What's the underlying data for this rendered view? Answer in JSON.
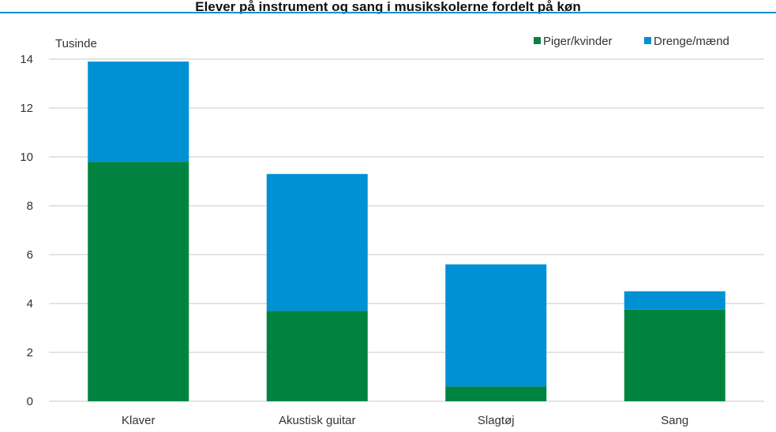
{
  "title": "Elever på instrument og sang i musikskolerne fordelt på køn",
  "chart_data": {
    "type": "bar",
    "stacked": true,
    "unit_label": "Tusinde",
    "categories": [
      "Klaver",
      "Akustisk guitar",
      "Slagtøj",
      "Sang"
    ],
    "series": [
      {
        "name": "Piger/kvinder",
        "color": "#00833e",
        "values": [
          9.8,
          3.7,
          0.6,
          3.75
        ]
      },
      {
        "name": "Drenge/mænd",
        "color": "#0090d4",
        "values": [
          4.1,
          5.6,
          5.0,
          0.75
        ]
      }
    ],
    "ylim": [
      0,
      14
    ],
    "yticks": [
      0,
      2,
      4,
      6,
      8,
      10,
      12,
      14
    ],
    "grid": true,
    "legend": "top-right",
    "gridline_color": "#c8c8c8"
  }
}
